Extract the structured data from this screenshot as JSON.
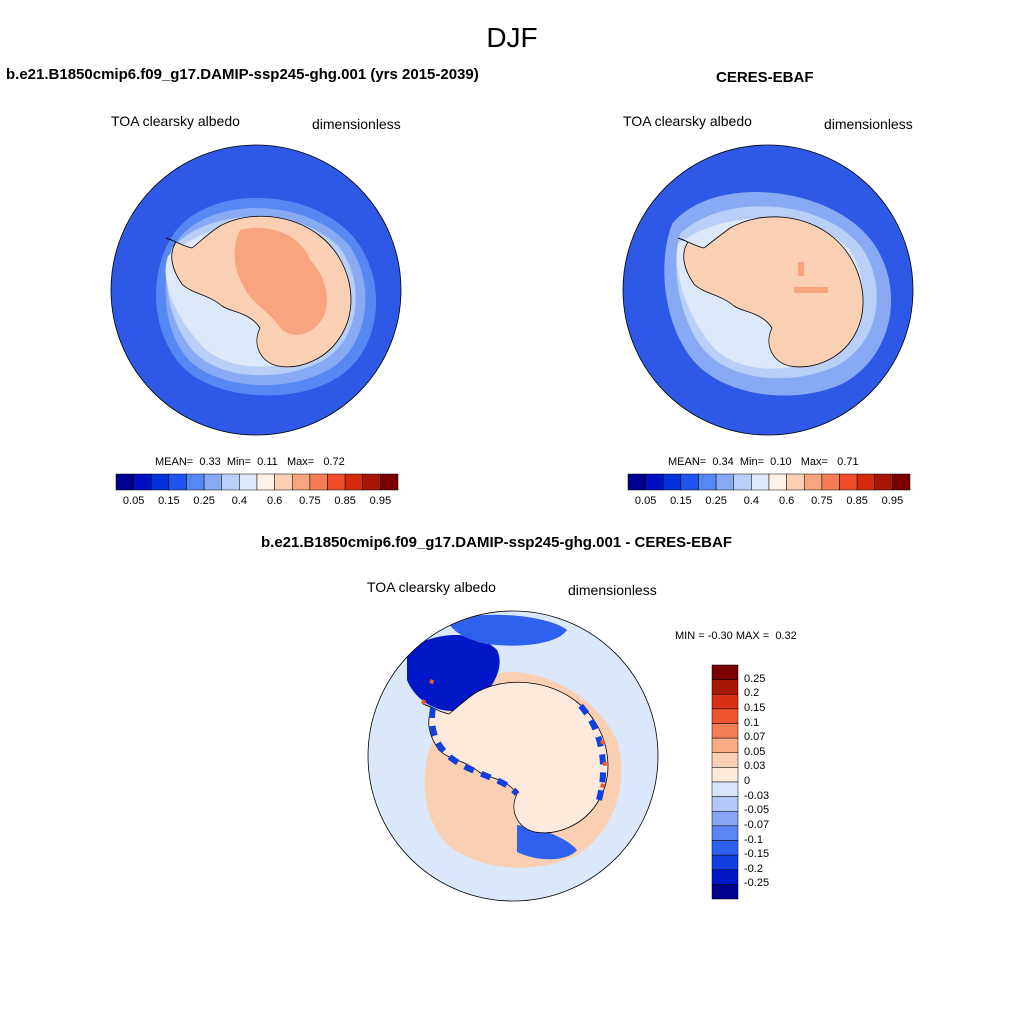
{
  "season": "DJF",
  "colors": {
    "abs_scale": [
      "#000090",
      "#0010c0",
      "#0033d9",
      "#2255ee",
      "#5588f2",
      "#88aaf5",
      "#b8cff8",
      "#dde8fb",
      "#fff1e6",
      "#fbd0b4",
      "#f8a47e",
      "#f57d55",
      "#ef4d2b",
      "#d42a10",
      "#a81508",
      "#7a0000"
    ],
    "diff_scale": [
      "#000090",
      "#0018c8",
      "#1040e0",
      "#2e62ee",
      "#5a85f2",
      "#86a6f5",
      "#b1c8f8",
      "#d8e6fb",
      "#fdeadd",
      "#fbcfb2",
      "#f8aa82",
      "#f57f55",
      "#ef5530",
      "#d83015",
      "#a81606",
      "#7a0000"
    ],
    "ocean": "#2e59e6",
    "diff_bg": "#dbe8fb"
  },
  "panel_left": {
    "title": "b.e21.B1850cmip6.f09_g17.DAMIP-ssp245-ghg.001 (yrs 2015-2039)",
    "variable": "TOA clearsky albedo",
    "units": "dimensionless",
    "stats": {
      "mean_label": "MEAN=",
      "mean": "0.33",
      "min_label": "Min=",
      "min": "0.11",
      "max_label": "Max=",
      "max": "0.72"
    }
  },
  "panel_right": {
    "title": "CERES-EBAF",
    "variable": "TOA clearsky albedo",
    "units": "dimensionless",
    "stats": {
      "mean_label": "MEAN=",
      "mean": "0.34",
      "min_label": "Min=",
      "min": "0.10",
      "max_label": "Max=",
      "max": "0.71"
    }
  },
  "abs_ticks": [
    "0.05",
    "0.15",
    "0.25",
    "0.4",
    "0.6",
    "0.75",
    "0.85",
    "0.95"
  ],
  "panel_diff": {
    "title": "b.e21.B1850cmip6.f09_g17.DAMIP-ssp245-ghg.001 - CERES-EBAF",
    "variable": "TOA clearsky albedo",
    "units": "dimensionless",
    "minmax": {
      "min_label": "MIN =",
      "min": "-0.30",
      "max_label": "MAX =",
      "max": "0.32"
    },
    "ticks": [
      "0.25",
      "0.2",
      "0.15",
      "0.1",
      "0.07",
      "0.05",
      "0.03",
      "0",
      "-0.03",
      "-0.05",
      "-0.07",
      "-0.1",
      "-0.15",
      "-0.2",
      "-0.25"
    ]
  }
}
